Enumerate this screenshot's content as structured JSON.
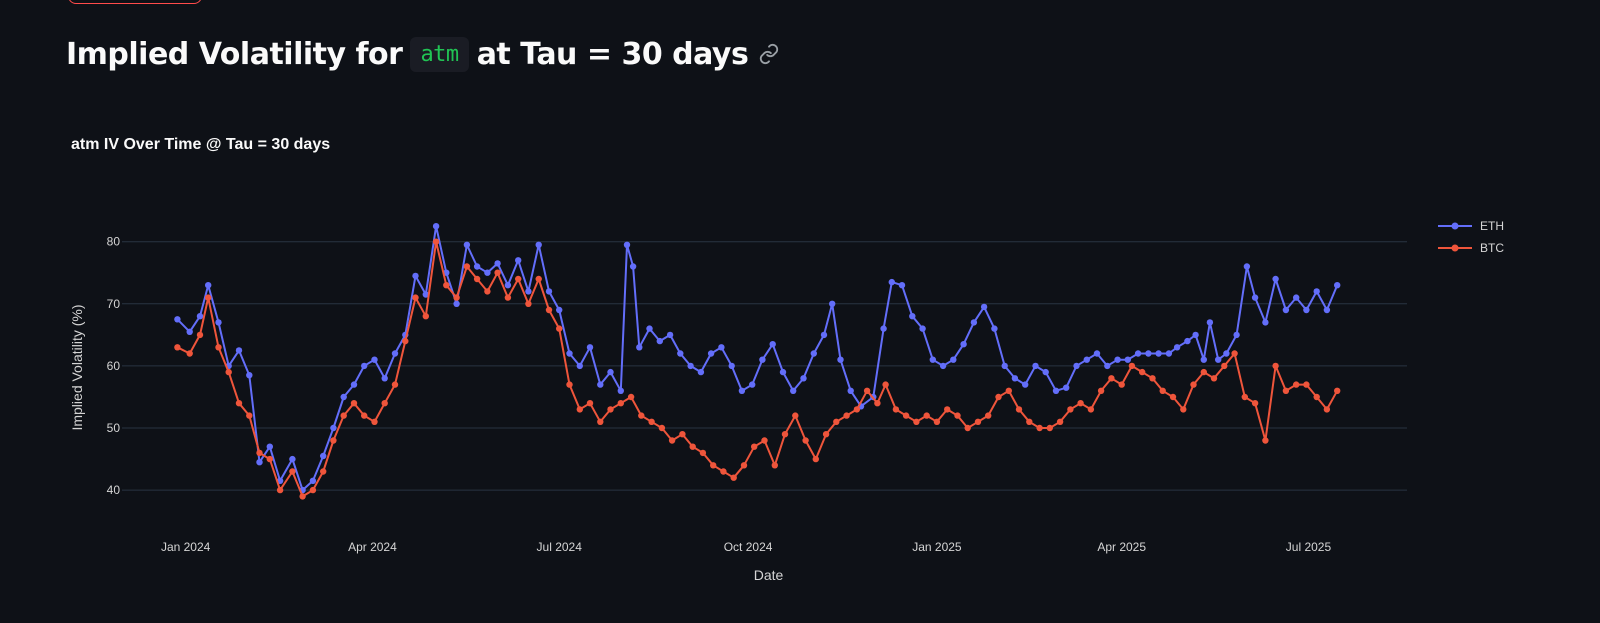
{
  "header": {
    "title_prefix": "Implied Volatility for",
    "code": "atm",
    "title_suffix": "at Tau = 30 days",
    "anchor_icon": "link-icon"
  },
  "colors": {
    "background": "#0e1117",
    "eth": "#636efa",
    "btc": "#ef553b",
    "code_text": "#21c354",
    "grid": "#283442"
  },
  "chart_data": {
    "type": "line",
    "title": "atm IV Over Time @ Tau = 30 days",
    "xlabel": "Date",
    "ylabel": "Implied Volatility (%)",
    "x_range": [
      "2023-12-01",
      "2025-08-18"
    ],
    "ylim": [
      33.1,
      88
    ],
    "yticks": [
      40,
      50,
      60,
      70,
      80
    ],
    "xticks": [
      {
        "date": "2024-01-01",
        "label": "Jan 2024"
      },
      {
        "date": "2024-04-01",
        "label": "Apr 2024"
      },
      {
        "date": "2024-07-01",
        "label": "Jul 2024"
      },
      {
        "date": "2024-10-01",
        "label": "Oct 2024"
      },
      {
        "date": "2025-01-01",
        "label": "Jan 2025"
      },
      {
        "date": "2025-04-01",
        "label": "Apr 2025"
      },
      {
        "date": "2025-07-01",
        "label": "Jul 2025"
      }
    ],
    "grid": true,
    "legend_position": "top-right",
    "series": [
      {
        "name": "ETH",
        "color": "#636efa",
        "points": [
          [
            "2023-12-28",
            67.5
          ],
          [
            "2024-01-03",
            65.5
          ],
          [
            "2024-01-08",
            68
          ],
          [
            "2024-01-12",
            73
          ],
          [
            "2024-01-17",
            67
          ],
          [
            "2024-01-22",
            60
          ],
          [
            "2024-01-27",
            62.5
          ],
          [
            "2024-02-01",
            58.5
          ],
          [
            "2024-02-06",
            44.5
          ],
          [
            "2024-02-11",
            47
          ],
          [
            "2024-02-16",
            41.5
          ],
          [
            "2024-02-22",
            45
          ],
          [
            "2024-02-27",
            40
          ],
          [
            "2024-03-03",
            41.5
          ],
          [
            "2024-03-08",
            45.5
          ],
          [
            "2024-03-13",
            50
          ],
          [
            "2024-03-18",
            55
          ],
          [
            "2024-03-23",
            57
          ],
          [
            "2024-03-28",
            60
          ],
          [
            "2024-04-02",
            61
          ],
          [
            "2024-04-07",
            58
          ],
          [
            "2024-04-12",
            62
          ],
          [
            "2024-04-17",
            65
          ],
          [
            "2024-04-22",
            74.5
          ],
          [
            "2024-04-27",
            71.5
          ],
          [
            "2024-05-02",
            82.5
          ],
          [
            "2024-05-07",
            75
          ],
          [
            "2024-05-12",
            70
          ],
          [
            "2024-05-17",
            79.5
          ],
          [
            "2024-05-22",
            76
          ],
          [
            "2024-05-27",
            75
          ],
          [
            "2024-06-01",
            76.5
          ],
          [
            "2024-06-06",
            73
          ],
          [
            "2024-06-11",
            77
          ],
          [
            "2024-06-16",
            72
          ],
          [
            "2024-06-21",
            79.5
          ],
          [
            "2024-06-26",
            72
          ],
          [
            "2024-07-01",
            69
          ],
          [
            "2024-07-06",
            62
          ],
          [
            "2024-07-11",
            60
          ],
          [
            "2024-07-16",
            63
          ],
          [
            "2024-07-21",
            57
          ],
          [
            "2024-07-26",
            59
          ],
          [
            "2024-07-31",
            56
          ],
          [
            "2024-08-03",
            79.5
          ],
          [
            "2024-08-06",
            76
          ],
          [
            "2024-08-09",
            63
          ],
          [
            "2024-08-14",
            66
          ],
          [
            "2024-08-19",
            64
          ],
          [
            "2024-08-24",
            65
          ],
          [
            "2024-08-29",
            62
          ],
          [
            "2024-09-03",
            60
          ],
          [
            "2024-09-08",
            59
          ],
          [
            "2024-09-13",
            62
          ],
          [
            "2024-09-18",
            63
          ],
          [
            "2024-09-23",
            60
          ],
          [
            "2024-09-28",
            56
          ],
          [
            "2024-10-03",
            57
          ],
          [
            "2024-10-08",
            61
          ],
          [
            "2024-10-13",
            63.5
          ],
          [
            "2024-10-18",
            59
          ],
          [
            "2024-10-23",
            56
          ],
          [
            "2024-10-28",
            58
          ],
          [
            "2024-11-02",
            62
          ],
          [
            "2024-11-07",
            65
          ],
          [
            "2024-11-11",
            70
          ],
          [
            "2024-11-15",
            61
          ],
          [
            "2024-11-20",
            56
          ],
          [
            "2024-11-25",
            53.5
          ],
          [
            "2024-12-01",
            55
          ],
          [
            "2024-12-06",
            66
          ],
          [
            "2024-12-10",
            73.5
          ],
          [
            "2024-12-15",
            73
          ],
          [
            "2024-12-20",
            68
          ],
          [
            "2024-12-25",
            66
          ],
          [
            "2024-12-30",
            61
          ],
          [
            "2025-01-04",
            60
          ],
          [
            "2025-01-09",
            61
          ],
          [
            "2025-01-14",
            63.5
          ],
          [
            "2025-01-19",
            67
          ],
          [
            "2025-01-24",
            69.5
          ],
          [
            "2025-01-29",
            66
          ],
          [
            "2025-02-03",
            60
          ],
          [
            "2025-02-08",
            58
          ],
          [
            "2025-02-13",
            57
          ],
          [
            "2025-02-18",
            60
          ],
          [
            "2025-02-23",
            59
          ],
          [
            "2025-02-28",
            56
          ],
          [
            "2025-03-05",
            56.5
          ],
          [
            "2025-03-10",
            60
          ],
          [
            "2025-03-15",
            61
          ],
          [
            "2025-03-20",
            62
          ],
          [
            "2025-03-25",
            60
          ],
          [
            "2025-03-30",
            61
          ],
          [
            "2025-04-04",
            61
          ],
          [
            "2025-04-09",
            62
          ],
          [
            "2025-04-14",
            62
          ],
          [
            "2025-04-19",
            62
          ],
          [
            "2025-04-24",
            62
          ],
          [
            "2025-04-28",
            63
          ],
          [
            "2025-05-03",
            64
          ],
          [
            "2025-05-07",
            65
          ],
          [
            "2025-05-11",
            61
          ],
          [
            "2025-05-14",
            67
          ],
          [
            "2025-05-18",
            61
          ],
          [
            "2025-05-22",
            62
          ],
          [
            "2025-05-27",
            65
          ],
          [
            "2025-06-01",
            76
          ],
          [
            "2025-06-05",
            71
          ],
          [
            "2025-06-10",
            67
          ],
          [
            "2025-06-15",
            74
          ],
          [
            "2025-06-20",
            69
          ],
          [
            "2025-06-25",
            71
          ],
          [
            "2025-06-30",
            69
          ],
          [
            "2025-07-05",
            72
          ],
          [
            "2025-07-10",
            69
          ],
          [
            "2025-07-15",
            73
          ]
        ]
      },
      {
        "name": "BTC",
        "color": "#ef553b",
        "points": [
          [
            "2023-12-28",
            63
          ],
          [
            "2024-01-03",
            62
          ],
          [
            "2024-01-08",
            65
          ],
          [
            "2024-01-12",
            71
          ],
          [
            "2024-01-17",
            63
          ],
          [
            "2024-01-22",
            59
          ],
          [
            "2024-01-27",
            54
          ],
          [
            "2024-02-01",
            52
          ],
          [
            "2024-02-06",
            46
          ],
          [
            "2024-02-11",
            45
          ],
          [
            "2024-02-16",
            40
          ],
          [
            "2024-02-22",
            43
          ],
          [
            "2024-02-27",
            39
          ],
          [
            "2024-03-03",
            40
          ],
          [
            "2024-03-08",
            43
          ],
          [
            "2024-03-13",
            48
          ],
          [
            "2024-03-18",
            52
          ],
          [
            "2024-03-23",
            54
          ],
          [
            "2024-03-28",
            52
          ],
          [
            "2024-04-02",
            51
          ],
          [
            "2024-04-07",
            54
          ],
          [
            "2024-04-12",
            57
          ],
          [
            "2024-04-17",
            64
          ],
          [
            "2024-04-22",
            71
          ],
          [
            "2024-04-27",
            68
          ],
          [
            "2024-05-02",
            80
          ],
          [
            "2024-05-07",
            73
          ],
          [
            "2024-05-12",
            71
          ],
          [
            "2024-05-17",
            76
          ],
          [
            "2024-05-22",
            74
          ],
          [
            "2024-05-27",
            72
          ],
          [
            "2024-06-01",
            75
          ],
          [
            "2024-06-06",
            71
          ],
          [
            "2024-06-11",
            74
          ],
          [
            "2024-06-16",
            70
          ],
          [
            "2024-06-21",
            74
          ],
          [
            "2024-06-26",
            69
          ],
          [
            "2024-07-01",
            66
          ],
          [
            "2024-07-06",
            57
          ],
          [
            "2024-07-11",
            53
          ],
          [
            "2024-07-16",
            54
          ],
          [
            "2024-07-21",
            51
          ],
          [
            "2024-07-26",
            53
          ],
          [
            "2024-07-31",
            54
          ],
          [
            "2024-08-05",
            55
          ],
          [
            "2024-08-10",
            52
          ],
          [
            "2024-08-15",
            51
          ],
          [
            "2024-08-20",
            50
          ],
          [
            "2024-08-25",
            48
          ],
          [
            "2024-08-30",
            49
          ],
          [
            "2024-09-04",
            47
          ],
          [
            "2024-09-09",
            46
          ],
          [
            "2024-09-14",
            44
          ],
          [
            "2024-09-19",
            43
          ],
          [
            "2024-09-24",
            42
          ],
          [
            "2024-09-29",
            44
          ],
          [
            "2024-10-04",
            47
          ],
          [
            "2024-10-09",
            48
          ],
          [
            "2024-10-14",
            44
          ],
          [
            "2024-10-19",
            49
          ],
          [
            "2024-10-24",
            52
          ],
          [
            "2024-10-29",
            48
          ],
          [
            "2024-11-03",
            45
          ],
          [
            "2024-11-08",
            49
          ],
          [
            "2024-11-13",
            51
          ],
          [
            "2024-11-18",
            52
          ],
          [
            "2024-11-23",
            53
          ],
          [
            "2024-11-28",
            56
          ],
          [
            "2024-12-03",
            54
          ],
          [
            "2024-12-07",
            57
          ],
          [
            "2024-12-12",
            53
          ],
          [
            "2024-12-17",
            52
          ],
          [
            "2024-12-22",
            51
          ],
          [
            "2024-12-27",
            52
          ],
          [
            "2025-01-01",
            51
          ],
          [
            "2025-01-06",
            53
          ],
          [
            "2025-01-11",
            52
          ],
          [
            "2025-01-16",
            50
          ],
          [
            "2025-01-21",
            51
          ],
          [
            "2025-01-26",
            52
          ],
          [
            "2025-01-31",
            55
          ],
          [
            "2025-02-05",
            56
          ],
          [
            "2025-02-10",
            53
          ],
          [
            "2025-02-15",
            51
          ],
          [
            "2025-02-20",
            50
          ],
          [
            "2025-02-25",
            50
          ],
          [
            "2025-03-02",
            51
          ],
          [
            "2025-03-07",
            53
          ],
          [
            "2025-03-12",
            54
          ],
          [
            "2025-03-17",
            53
          ],
          [
            "2025-03-22",
            56
          ],
          [
            "2025-03-27",
            58
          ],
          [
            "2025-04-01",
            57
          ],
          [
            "2025-04-06",
            60
          ],
          [
            "2025-04-11",
            59
          ],
          [
            "2025-04-16",
            58
          ],
          [
            "2025-04-21",
            56
          ],
          [
            "2025-04-26",
            55
          ],
          [
            "2025-05-01",
            53
          ],
          [
            "2025-05-06",
            57
          ],
          [
            "2025-05-11",
            59
          ],
          [
            "2025-05-16",
            58
          ],
          [
            "2025-05-21",
            60
          ],
          [
            "2025-05-26",
            62
          ],
          [
            "2025-05-31",
            55
          ],
          [
            "2025-06-05",
            54
          ],
          [
            "2025-06-10",
            48
          ],
          [
            "2025-06-15",
            60
          ],
          [
            "2025-06-20",
            56
          ],
          [
            "2025-06-25",
            57
          ],
          [
            "2025-06-30",
            57
          ],
          [
            "2025-07-05",
            55
          ],
          [
            "2025-07-10",
            53
          ],
          [
            "2025-07-15",
            56
          ]
        ]
      }
    ]
  }
}
